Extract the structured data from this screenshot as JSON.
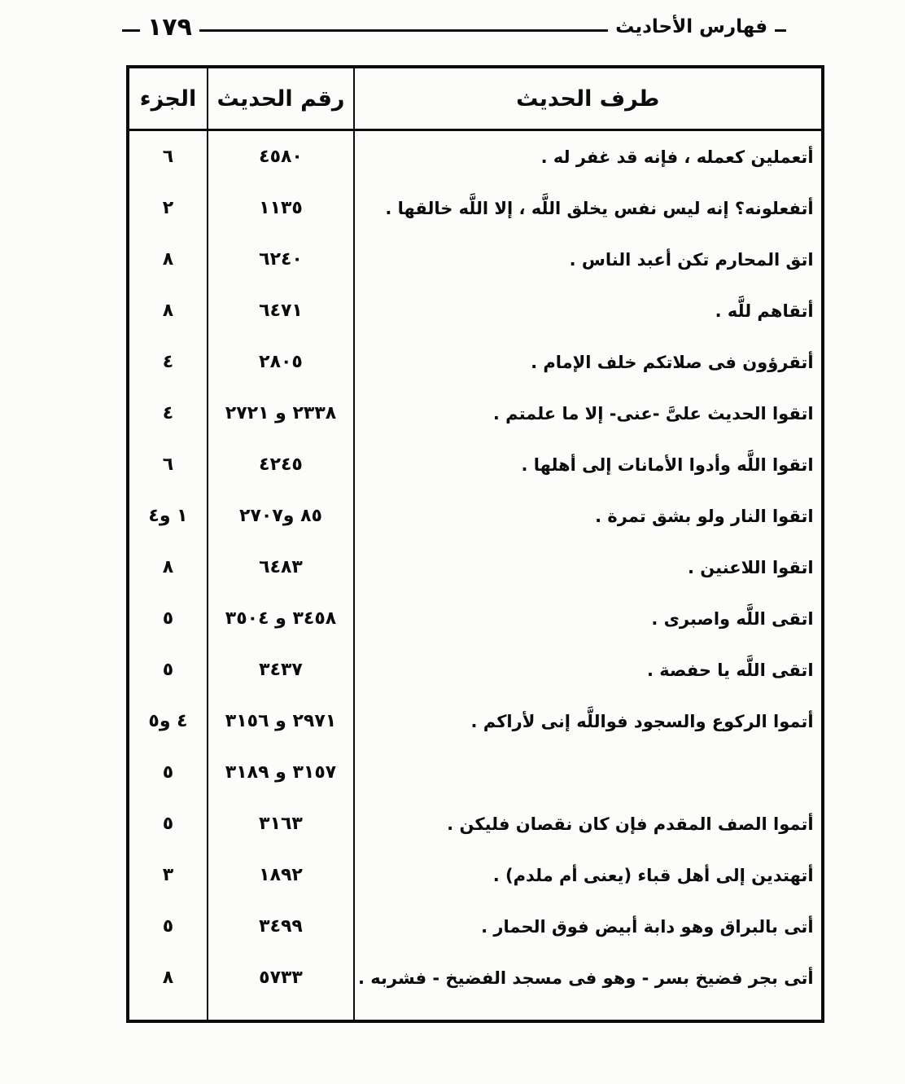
{
  "header": {
    "title": "فهارس الأحاديث",
    "page_number": "١٧٩"
  },
  "table": {
    "columns": {
      "text": "طرف الحديث",
      "number": "رقم الحديث",
      "part": "الجزء"
    },
    "rows": [
      {
        "text": "أتعملين كعمله ، فإنه قد غفر له .",
        "number": "٤٥٨٠",
        "part": "٦"
      },
      {
        "text": "أتفعلونه؟ إنه ليس نفس يخلق اللَّه ، إلا اللَّه خالقها .",
        "number": "١١٣٥",
        "part": "٢"
      },
      {
        "text": "اتق المحارم تكن أعبد الناس .",
        "number": "٦٢٤٠",
        "part": "٨"
      },
      {
        "text": "أتقاهم للَّه .",
        "number": "٦٤٧١",
        "part": "٨"
      },
      {
        "text": "أتقرؤون فى صلاتكم خلف الإمام .",
        "number": "٢٨٠٥",
        "part": "٤"
      },
      {
        "text": "اتقوا الحديث علىَّ -عنى- إلا ما علمتم .",
        "number": "٢٣٣٨ و ٢٧٢١",
        "part": "٤"
      },
      {
        "text": "اتقوا اللَّه وأدوا الأمانات إلى أهلها .",
        "number": "٤٢٤٥",
        "part": "٦"
      },
      {
        "text": "اتقوا النار ولو بشق تمرة .",
        "number": "٨٥ و٢٧٠٧",
        "part": "١ و٤"
      },
      {
        "text": "اتقوا اللاعنين .",
        "number": "٦٤٨٣",
        "part": "٨"
      },
      {
        "text": "اتقى اللَّه واصبرى .",
        "number": "٣٤٥٨ و ٣٥٠٤",
        "part": "٥"
      },
      {
        "text": "اتقى اللَّه يا حفصة .",
        "number": "٣٤٣٧",
        "part": "٥"
      },
      {
        "text": "أتموا الركوع والسجود فواللَّه إنى لأراكم .",
        "number": "٢٩٧١ و ٣١٥٦",
        "part": "٤ و٥"
      },
      {
        "text": "",
        "number": "٣١٥٧ و ٣١٨٩",
        "part": "٥"
      },
      {
        "text": "أتموا الصف المقدم فإن كان نقصان فليكن .",
        "number": "٣١٦٣",
        "part": "٥"
      },
      {
        "text": "أتهتدين إلى أهل قباء (يعنى أم ملدم) .",
        "number": "١٨٩٢",
        "part": "٣"
      },
      {
        "text": "أتى بالبراق وهو دابة أبيض فوق الحمار .",
        "number": "٣٤٩٩",
        "part": "٥"
      },
      {
        "text": "أتى بجر فضيخ بسر - وهو فى مسجد الفضيخ - فشربه .",
        "number": "٥٧٣٣",
        "part": "٨"
      }
    ]
  }
}
